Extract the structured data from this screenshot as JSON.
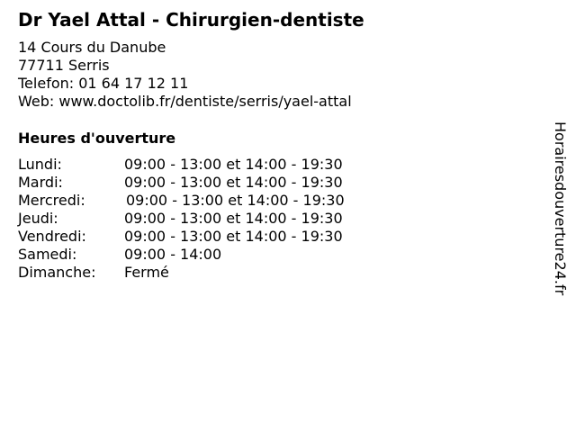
{
  "title": "Dr Yael Attal - Chirurgien-dentiste",
  "address": {
    "street": "14 Cours du Danube",
    "city": "77711 Serris",
    "phone": "Telefon: 01 64 17 12 11",
    "web": "Web: www.doctolib.fr/dentiste/serris/yael-attal"
  },
  "hours_heading": "Heures d'ouverture",
  "hours": [
    {
      "day": "Lundi:",
      "time": "09:00 - 13:00 et 14:00 - 19:30"
    },
    {
      "day": "Mardi:",
      "time": "09:00 - 13:00 et 14:00 - 19:30"
    },
    {
      "day": "Mercredi:",
      "time": "09:00 - 13:00 et 14:00 - 19:30"
    },
    {
      "day": "Jeudi:",
      "time": "09:00 - 13:00 et 14:00 - 19:30"
    },
    {
      "day": "Vendredi:",
      "time": "09:00 - 13:00 et 14:00 - 19:30"
    },
    {
      "day": "Samedi:",
      "time": "09:00 - 14:00"
    },
    {
      "day": "Dimanche:",
      "time": "Fermé"
    }
  ],
  "watermark": "Horairesdouverture24.fr"
}
